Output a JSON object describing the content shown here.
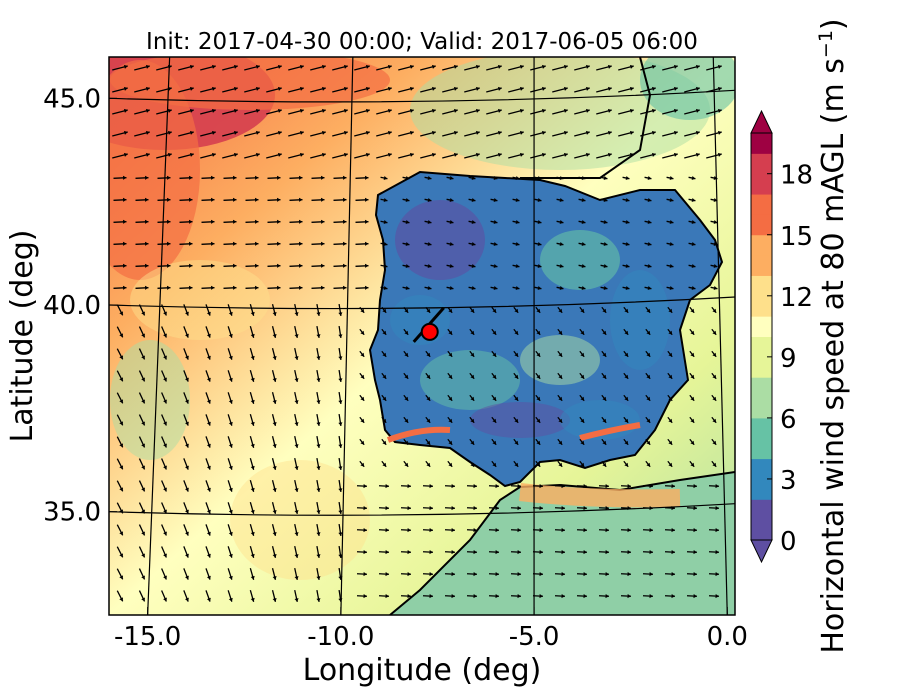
{
  "chart_data": {
    "type": "heatmap",
    "title": "Init: 2017-04-30 00:00; Valid: 2017-06-05 06:00",
    "xlabel": "Longitude (deg)",
    "ylabel": "Latitude (deg)",
    "colorbar_label": "Horizontal wind speed at 80 mAGL (m s",
    "colorbar_label_exponent": "−1",
    "colorbar_label_end": ")",
    "xlim": [
      -16.0,
      0.2
    ],
    "ylim": [
      32.5,
      46.0
    ],
    "x_ticks": [
      -15.0,
      -10.0,
      -5.0,
      0.0
    ],
    "x_tick_labels": [
      "-15.0",
      "-10.0",
      "-5.0",
      "0.0"
    ],
    "y_ticks": [
      35.0,
      40.0,
      45.0
    ],
    "y_tick_labels": [
      "35.0",
      "40.0",
      "45.0"
    ],
    "colorbar_range": [
      0,
      20
    ],
    "colorbar_ticks": [
      0,
      3,
      6,
      9,
      12,
      15,
      18
    ],
    "colorbar_tick_labels": [
      "0",
      "3",
      "6",
      "9",
      "12",
      "15",
      "18"
    ],
    "colorbar_extend": "both",
    "colormap": [
      "#5e4fa2",
      "#3288bd",
      "#66c2a5",
      "#abdda4",
      "#e6f598",
      "#ffffbf",
      "#fee08b",
      "#fdae61",
      "#f46d43",
      "#d53e4f",
      "#9e0142"
    ],
    "overlay": "wind vectors (arrows)",
    "marker": {
      "lon": -7.7,
      "lat": 39.35,
      "color": "#ff0000"
    },
    "grid": true
  }
}
